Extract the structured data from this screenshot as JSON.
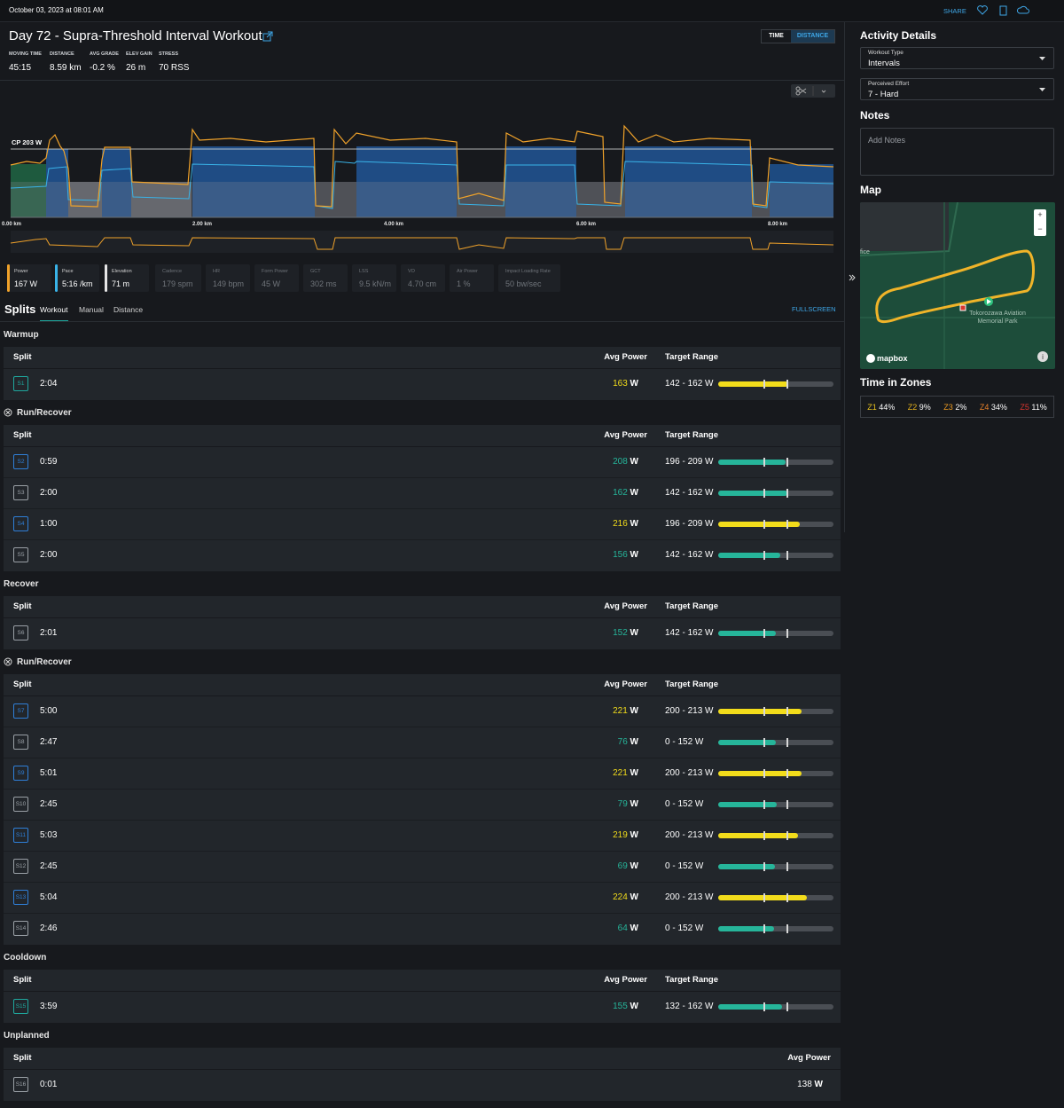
{
  "topbar": {
    "timestamp": "October 03, 2023 at 08:01 AM",
    "share": "SHARE"
  },
  "header": {
    "title": "Day 72 - Supra-Threshold Interval Workout",
    "toggle": [
      "TIME",
      "DISTANCE"
    ],
    "stats": [
      {
        "label": "MOVING TIME",
        "value": "45:15"
      },
      {
        "label": "DISTANCE",
        "value": "8.59 km"
      },
      {
        "label": "AVG GRADE",
        "value": "-0.2 %"
      },
      {
        "label": "ELEV GAIN",
        "value": "26 m"
      },
      {
        "label": "STRESS",
        "value": "70 RSS"
      }
    ]
  },
  "graph": {
    "cp_label": "CP 203 W",
    "x_labels": [
      "0.00 km",
      "2.00 km",
      "4.00 km",
      "6.00 km",
      "8.00 km"
    ]
  },
  "metrics": [
    {
      "label": "Power",
      "value": "167 W",
      "color": "#f0a22a"
    },
    {
      "label": "Pace",
      "value": "5:16 /km",
      "color": "#39b3e8"
    },
    {
      "label": "Elevation",
      "value": "71 m",
      "color": "#e6e6e6"
    },
    {
      "label": "Cadence",
      "value": "179 spm"
    },
    {
      "label": "HR",
      "value": "149 bpm"
    },
    {
      "label": "Form Power",
      "value": "45 W"
    },
    {
      "label": "GCT",
      "value": "302 ms"
    },
    {
      "label": "LSS",
      "value": "9.5 kN/m"
    },
    {
      "label": "VO",
      "value": "4.70 cm"
    },
    {
      "label": "Air Power",
      "value": "1 %"
    },
    {
      "label": "Impact Loading Rate",
      "value": "50 bw/sec"
    }
  ],
  "splits": {
    "title": "Splits",
    "tabs": [
      "Workout",
      "Manual",
      "Distance"
    ],
    "fullscreen": "FULLSCREEN",
    "columns": {
      "split": "Split",
      "avg_power": "Avg Power",
      "target_range": "Target Range"
    },
    "power_unit": "W",
    "groups": [
      {
        "name": "Warmup",
        "rows": [
          {
            "id": "S1",
            "time": "2:04",
            "avg_power": 163,
            "target": "142 - 162 W",
            "badge_color": "#1fa89e"
          }
        ]
      },
      {
        "name": "Run/Recover",
        "repeat": true,
        "rows": [
          {
            "id": "S2",
            "time": "0:59",
            "avg_power": 208,
            "target": "196 - 209 W",
            "badge_color": "#2f7fd8"
          },
          {
            "id": "S3",
            "time": "2:00",
            "avg_power": 162,
            "target": "142 - 162 W",
            "badge_color": "#9aa0a6"
          },
          {
            "id": "S4",
            "time": "1:00",
            "avg_power": 216,
            "target": "196 - 209 W",
            "badge_color": "#2f7fd8"
          },
          {
            "id": "S5",
            "time": "2:00",
            "avg_power": 156,
            "target": "142 - 162 W",
            "badge_color": "#9aa0a6"
          }
        ]
      },
      {
        "name": "Recover",
        "rows": [
          {
            "id": "S6",
            "time": "2:01",
            "avg_power": 152,
            "target": "142 - 162 W",
            "badge_color": "#9aa0a6"
          }
        ]
      },
      {
        "name": "Run/Recover",
        "repeat": true,
        "rows": [
          {
            "id": "S7",
            "time": "5:00",
            "avg_power": 221,
            "target": "200 - 213 W",
            "badge_color": "#2f7fd8"
          },
          {
            "id": "S8",
            "time": "2:47",
            "avg_power": 76,
            "target": "0 - 152 W",
            "badge_color": "#9aa0a6"
          },
          {
            "id": "S9",
            "time": "5:01",
            "avg_power": 221,
            "target": "200 - 213 W",
            "badge_color": "#2f7fd8"
          },
          {
            "id": "S10",
            "time": "2:45",
            "avg_power": 79,
            "target": "0 - 152 W",
            "badge_color": "#9aa0a6"
          },
          {
            "id": "S11",
            "time": "5:03",
            "avg_power": 219,
            "target": "200 - 213 W",
            "badge_color": "#2f7fd8"
          },
          {
            "id": "S12",
            "time": "2:45",
            "avg_power": 69,
            "target": "0 - 152 W",
            "badge_color": "#9aa0a6"
          },
          {
            "id": "S13",
            "time": "5:04",
            "avg_power": 224,
            "target": "200 - 213 W",
            "badge_color": "#2f7fd8"
          },
          {
            "id": "S14",
            "time": "2:46",
            "avg_power": 64,
            "target": "0 - 152 W",
            "badge_color": "#9aa0a6"
          }
        ]
      },
      {
        "name": "Cooldown",
        "rows": [
          {
            "id": "S15",
            "time": "3:59",
            "avg_power": 155,
            "target": "132 - 162 W",
            "badge_color": "#1fa89e"
          }
        ]
      },
      {
        "name": "Unplanned",
        "rows": [
          {
            "id": "S16",
            "time": "0:01",
            "avg_power": 138,
            "badge_color": "#9aa0a6"
          }
        ]
      }
    ]
  },
  "sidebar": {
    "title": "Activity Details",
    "workout_type": {
      "label": "Workout Type",
      "value": "Intervals"
    },
    "perceived_effort": {
      "label": "Perceived Effort",
      "value": "7 - Hard"
    },
    "notes_title": "Notes",
    "notes_placeholder": "Add Notes",
    "map_title": "Map",
    "map_edge_label": "fice",
    "map_place": "Tokorozawa Aviation Memorial Park",
    "map_attribution": "mapbox",
    "zones_title": "Time in Zones",
    "zones": [
      {
        "name": "Z1",
        "value": "44%",
        "color": "#e9c21f"
      },
      {
        "name": "Z2",
        "value": "9%",
        "color": "#e6b21c"
      },
      {
        "name": "Z3",
        "value": "2%",
        "color": "#ec9a22"
      },
      {
        "name": "Z4",
        "value": "34%",
        "color": "#e9812a"
      },
      {
        "name": "Z5",
        "value": "11%",
        "color": "#d9352e"
      }
    ]
  }
}
